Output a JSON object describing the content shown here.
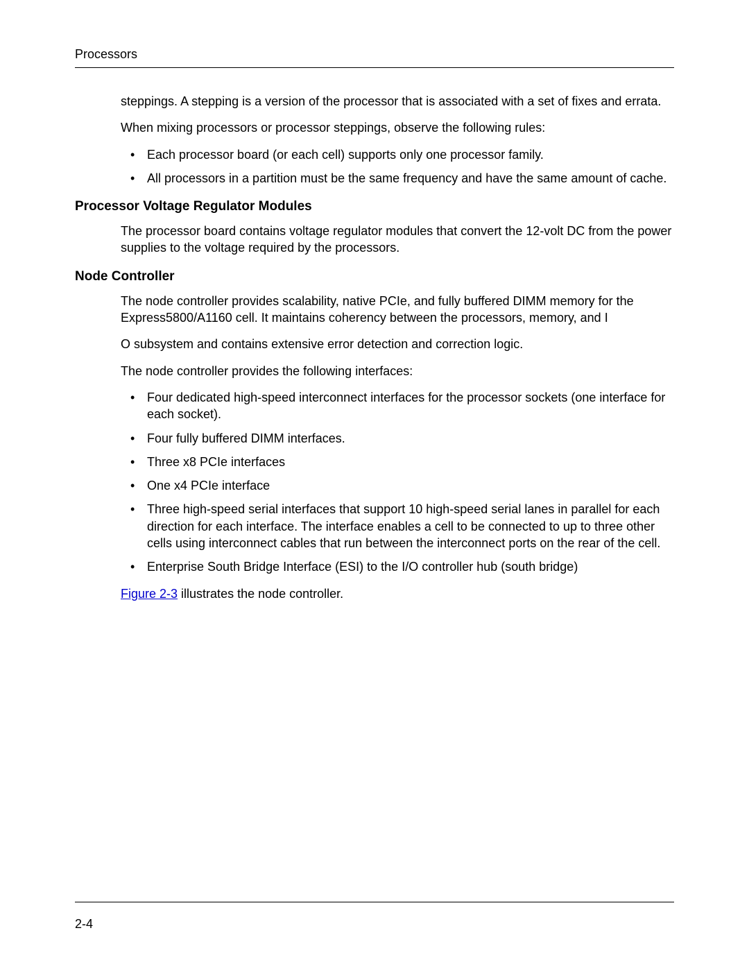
{
  "header": {
    "title": "Processors"
  },
  "intro": {
    "p1": "steppings. A stepping is a version of the processor that is associated with a set of fixes and errata.",
    "p2": "When mixing processors or processor steppings, observe the following rules:",
    "bullets": [
      "Each processor board (or each cell) supports only one processor family.",
      "All processors in a partition must be the same frequency and have the same amount of cache."
    ]
  },
  "section1": {
    "heading": "Processor Voltage Regulator Modules",
    "p1": "The processor board contains voltage regulator modules that convert the 12-volt DC from the power supplies to the voltage required by the processors."
  },
  "section2": {
    "heading": "Node Controller",
    "p1": "The node controller provides scalability, native PCIe, and fully buffered DIMM memory for the Express5800/A1160 cell. It maintains coherency between the processors, memory, and I",
    "p2": "O subsystem and contains extensive error detection and correction logic.",
    "p3": "The node controller provides the following interfaces:",
    "bullets": [
      "Four dedicated high-speed interconnect interfaces for the processor sockets (one interface for each socket).",
      "Four fully buffered DIMM interfaces.",
      "Three x8 PCIe interfaces",
      "One x4 PCIe interface",
      "Three high-speed serial interfaces that support 10 high-speed serial lanes in parallel for each direction for each interface. The interface enables a cell to be connected to up to three other cells using interconnect cables that run between the interconnect ports on the rear of the cell.",
      "Enterprise South Bridge Interface (ESI) to the I/O controller hub (south bridge)"
    ],
    "figref_link": "Figure 2-3",
    "figref_rest": " illustrates the node controller."
  },
  "footer": {
    "page_number": "2-4"
  }
}
